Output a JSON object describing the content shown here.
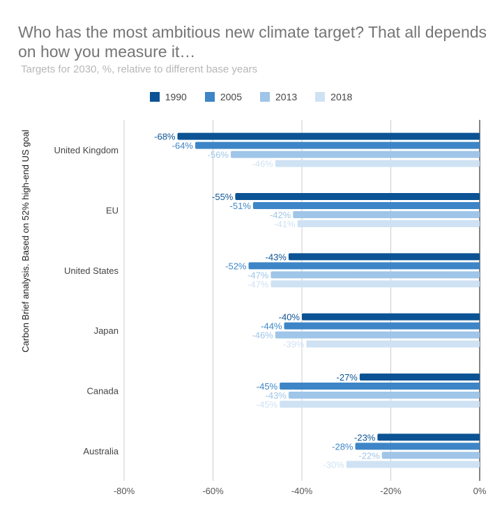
{
  "chart_data": {
    "type": "bar",
    "orientation": "horizontal",
    "title": "Who has the most ambitious new climate target? That all depends on how you measure it…",
    "subtitle": "Targets for 2030, %, relative to different base years",
    "ylabel": "Carbon Brief analysis. Based on 52% high-end US goal",
    "xlabel": "",
    "categories": [
      "United Kingdom",
      "EU",
      "United States",
      "Japan",
      "Canada",
      "Australia"
    ],
    "series": [
      {
        "name": "1990",
        "color": "#0b5394",
        "values": [
          -68,
          -55,
          -43,
          -40,
          -27,
          -23
        ]
      },
      {
        "name": "2005",
        "color": "#3d85c6",
        "values": [
          -64,
          -51,
          -52,
          -44,
          -45,
          -28
        ]
      },
      {
        "name": "2013",
        "color": "#9fc5e8",
        "values": [
          -56,
          -42,
          -47,
          -46,
          -43,
          -22
        ]
      },
      {
        "name": "2018",
        "color": "#cfe2f3",
        "values": [
          -46,
          -41,
          -47,
          -39,
          -45,
          -30
        ]
      }
    ],
    "xlim": [
      -80,
      0
    ],
    "xticks": [
      "-80%",
      "-60%",
      "-40%",
      "-20%",
      "0%"
    ],
    "xtick_values": [
      -80,
      -60,
      -40,
      -20,
      0
    ],
    "grid": true,
    "legend_position": "top",
    "data_label_suffix": "%"
  }
}
